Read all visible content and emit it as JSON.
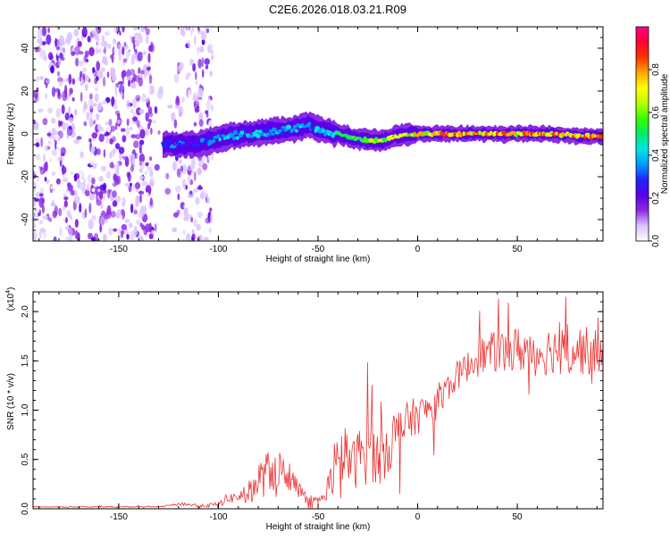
{
  "title": "C2E6.2026.018.03.21.R09",
  "chart_data": [
    {
      "type": "heatmap",
      "title": "C2E6.2026.018.03.21.R09",
      "xlabel": "Height of straight line (km)",
      "ylabel": "Frequency (Hz)",
      "xlim": [
        -193,
        93
      ],
      "ylim": [
        -50,
        50
      ],
      "x_ticks": [
        -150,
        -100,
        -50,
        0,
        50
      ],
      "y_ticks": [
        -40,
        -20,
        0,
        20,
        40
      ],
      "x_tick_labels": [
        "-150",
        "-100",
        "-50",
        "0",
        "50"
      ],
      "y_tick_labels": [
        "-40",
        "-20",
        "0",
        "20",
        "40"
      ],
      "noise_region_x": [
        -193,
        -103
      ],
      "trace": {
        "x": [
          -128,
          -120,
          -112,
          -103,
          -95,
          -85,
          -75,
          -65,
          -55,
          -48,
          -40,
          -32,
          -25,
          -18,
          -10,
          0,
          10,
          20,
          30,
          40,
          50,
          60,
          70,
          80,
          93
        ],
        "frequency": [
          -5,
          -5,
          -5,
          -3,
          -1,
          0,
          1,
          2,
          4,
          2,
          0,
          -2,
          -3,
          -3,
          -1,
          0,
          0,
          0,
          0,
          0,
          0,
          0,
          0,
          -1,
          -1
        ],
        "amplitude": [
          0.35,
          0.35,
          0.3,
          0.4,
          0.45,
          0.45,
          0.45,
          0.45,
          0.4,
          0.45,
          0.55,
          0.6,
          0.65,
          0.7,
          0.75,
          0.8,
          0.8,
          0.85,
          0.85,
          0.85,
          0.85,
          0.85,
          0.85,
          0.85,
          0.85
        ]
      },
      "colorbar": {
        "label": "Normalized spectral amplitude",
        "range": [
          0,
          1
        ],
        "ticks": [
          0,
          0.2,
          0.4,
          0.6,
          0.8
        ],
        "tick_labels": [
          "0.0",
          "0.2",
          "0.4",
          "0.6",
          "0.8"
        ],
        "stops": [
          "#ffffff",
          "#dcc4ff",
          "#8a2be2",
          "#5a00e8",
          "#2222ff",
          "#0099ff",
          "#00e6e6",
          "#00ee66",
          "#33ff00",
          "#b8ff00",
          "#ffff00",
          "#ffa500",
          "#ff3300",
          "#ff0033",
          "#ff0088"
        ]
      }
    },
    {
      "type": "line",
      "xlabel": "Height of straight line (km)",
      "ylabel": "SNR (10 * v/v)",
      "y_multiplier": "(x10",
      "y_multiplier_exp": "4",
      "y_multiplier_close": ")",
      "xlim": [
        -193,
        93
      ],
      "ylim": [
        0,
        2.2
      ],
      "x_ticks": [
        -150,
        -100,
        -50,
        0,
        50
      ],
      "y_ticks": [
        0,
        0.5,
        1.0,
        1.5,
        2.0
      ],
      "x_tick_labels": [
        "-150",
        "-100",
        "-50",
        "0",
        "50"
      ],
      "y_tick_labels": [
        "0.0",
        "0.5",
        "1.0",
        "1.5",
        "2.0"
      ],
      "series": [
        {
          "name": "SNR",
          "color": "#ee3333",
          "x": [
            -193,
            -130,
            -122,
            -118,
            -110,
            -100,
            -96,
            -90,
            -84,
            -80,
            -76,
            -72,
            -68,
            -64,
            -60,
            -56,
            -52,
            -48,
            -44,
            -42,
            -40,
            -36,
            -32,
            -28,
            -24,
            -20,
            -16,
            -12,
            -8,
            -4,
            0,
            4,
            8,
            12,
            16,
            20,
            24,
            28,
            32,
            36,
            40,
            44,
            48,
            52,
            56,
            60,
            64,
            68,
            72,
            76,
            80,
            84,
            88,
            93
          ],
          "y": [
            0.02,
            0.02,
            0.04,
            0.05,
            0.03,
            0.04,
            0.1,
            0.12,
            0.18,
            0.28,
            0.35,
            0.42,
            0.38,
            0.3,
            0.22,
            0.12,
            0.08,
            0.1,
            0.28,
            0.32,
            0.45,
            0.55,
            0.45,
            0.58,
            0.6,
            0.5,
            0.62,
            0.72,
            0.8,
            0.9,
            0.95,
            1.0,
            1.05,
            1.15,
            1.25,
            1.35,
            1.42,
            1.5,
            1.55,
            1.58,
            1.6,
            1.58,
            1.6,
            1.62,
            1.6,
            1.58,
            1.6,
            1.62,
            1.6,
            1.58,
            1.62,
            1.6,
            1.58,
            1.6
          ],
          "noise_amplitude": [
            0.005,
            0.005,
            0.01,
            0.02,
            0.01,
            0.03,
            0.05,
            0.06,
            0.12,
            0.2,
            0.22,
            0.25,
            0.2,
            0.12,
            0.08,
            0.05,
            0.04,
            0.05,
            0.15,
            0.2,
            0.3,
            0.3,
            0.25,
            0.35,
            0.35,
            0.3,
            0.3,
            0.3,
            0.25,
            0.2,
            0.2,
            0.15,
            0.2,
            0.15,
            0.15,
            0.15,
            0.15,
            0.18,
            0.2,
            0.2,
            0.22,
            0.22,
            0.24,
            0.25,
            0.25,
            0.25,
            0.25,
            0.25,
            0.25,
            0.25,
            0.25,
            0.25,
            0.25,
            0.22
          ]
        }
      ]
    }
  ]
}
